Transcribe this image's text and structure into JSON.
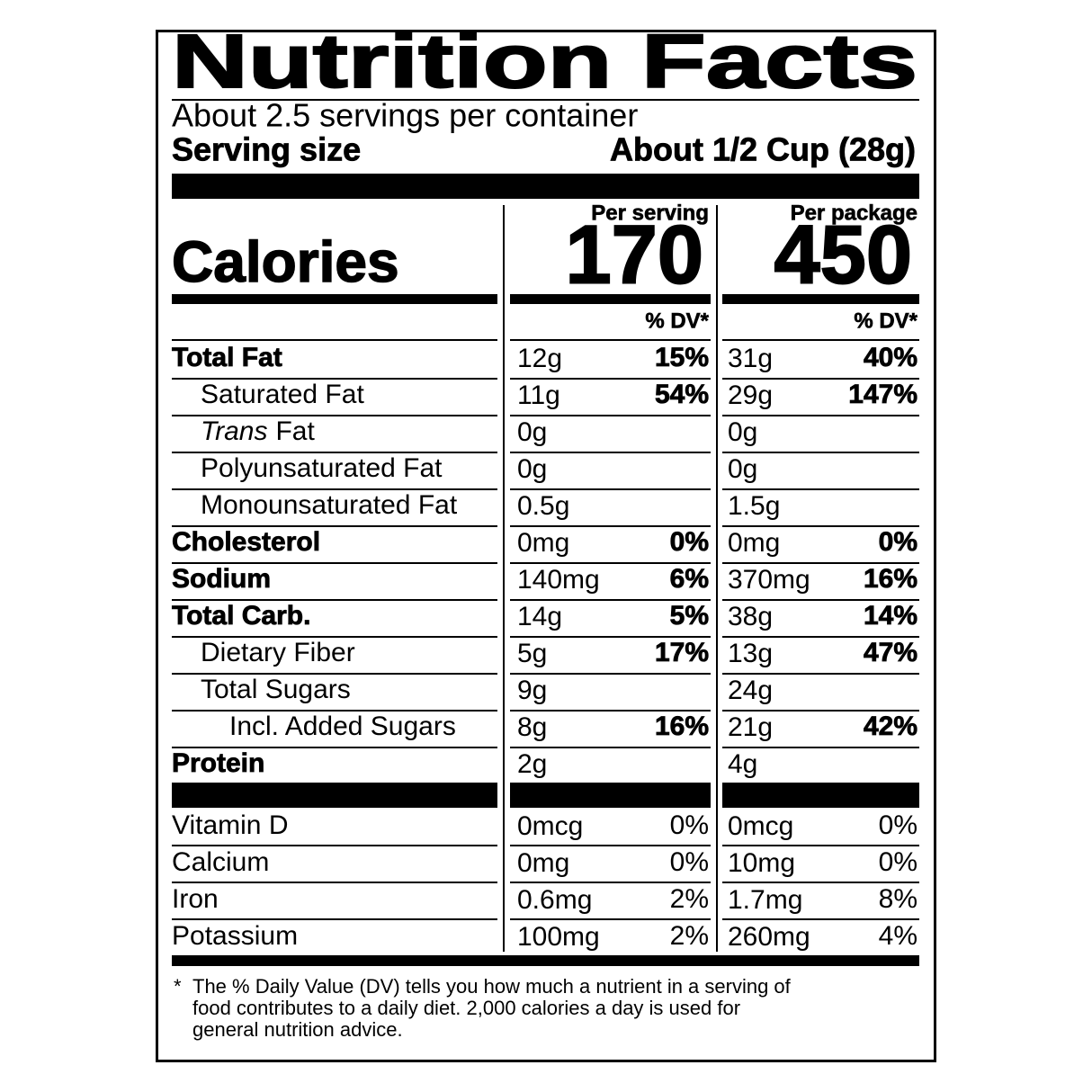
{
  "title": "Nutrition Facts",
  "servings": "About 2.5 servings per container",
  "serving_size_label": "Serving size",
  "serving_size": "About 1/2 Cup (28g)",
  "calories_label": "Calories",
  "columns": [
    {
      "header": "Per serving",
      "calories": 170,
      "dv_header": "% DV*"
    },
    {
      "header": "Per package",
      "calories": 450,
      "dv_header": "% DV*"
    }
  ],
  "nutrients": [
    {
      "name": "Total Fat",
      "bold": true,
      "indent": 0,
      "cells": [
        {
          "amount": "12g",
          "dv": "15%"
        },
        {
          "amount": "31g",
          "dv": "40%"
        }
      ]
    },
    {
      "name": "Saturated Fat",
      "bold": false,
      "indent": 1,
      "cells": [
        {
          "amount": "11g",
          "dv": "54%"
        },
        {
          "amount": "29g",
          "dv": "147%"
        }
      ]
    },
    {
      "name_italic": "Trans",
      "name": "Fat",
      "bold": false,
      "indent": 1,
      "cells": [
        {
          "amount": "0g"
        },
        {
          "amount": "0g"
        }
      ]
    },
    {
      "name": "Polyunsaturated Fat",
      "bold": false,
      "indent": 1,
      "cells": [
        {
          "amount": "0g"
        },
        {
          "amount": "0g"
        }
      ]
    },
    {
      "name": "Monounsaturated Fat",
      "bold": false,
      "indent": 1,
      "cells": [
        {
          "amount": "0.5g"
        },
        {
          "amount": "1.5g"
        }
      ]
    },
    {
      "name": "Cholesterol",
      "bold": true,
      "indent": 0,
      "cells": [
        {
          "amount": "0mg",
          "dv": "0%"
        },
        {
          "amount": "0mg",
          "dv": "0%"
        }
      ]
    },
    {
      "name": "Sodium",
      "bold": true,
      "indent": 0,
      "cells": [
        {
          "amount": "140mg",
          "dv": "6%"
        },
        {
          "amount": "370mg",
          "dv": "16%"
        }
      ]
    },
    {
      "name": "Total Carb.",
      "bold": true,
      "indent": 0,
      "cells": [
        {
          "amount": "14g",
          "dv": "5%"
        },
        {
          "amount": "38g",
          "dv": "14%"
        }
      ]
    },
    {
      "name": "Dietary Fiber",
      "bold": false,
      "indent": 1,
      "cells": [
        {
          "amount": "5g",
          "dv": "17%"
        },
        {
          "amount": "13g",
          "dv": "47%"
        }
      ]
    },
    {
      "name": "Total Sugars",
      "bold": false,
      "indent": 1,
      "cells": [
        {
          "amount": "9g"
        },
        {
          "amount": "24g"
        }
      ]
    },
    {
      "name": "Incl. Added Sugars",
      "bold": false,
      "indent": 2,
      "cells": [
        {
          "amount": "8g",
          "dv": "16%"
        },
        {
          "amount": "21g",
          "dv": "42%"
        }
      ]
    },
    {
      "name": "Protein",
      "bold": true,
      "indent": 0,
      "cells": [
        {
          "amount": "2g"
        },
        {
          "amount": "4g"
        }
      ]
    }
  ],
  "vitamins": [
    {
      "name": "Vitamin D",
      "cells": [
        {
          "amount": "0mcg",
          "dv": "0%"
        },
        {
          "amount": "0mcg",
          "dv": "0%"
        }
      ]
    },
    {
      "name": "Calcium",
      "cells": [
        {
          "amount": "0mg",
          "dv": "0%"
        },
        {
          "amount": "10mg",
          "dv": "0%"
        }
      ]
    },
    {
      "name": "Iron",
      "cells": [
        {
          "amount": "0.6mg",
          "dv": "2%"
        },
        {
          "amount": "1.7mg",
          "dv": "8%"
        }
      ]
    },
    {
      "name": "Potassium",
      "cells": [
        {
          "amount": "100mg",
          "dv": "2%"
        },
        {
          "amount": "260mg",
          "dv": "4%"
        }
      ]
    }
  ],
  "footnote": {
    "mark": "*",
    "lines": [
      "The % Daily Value (DV) tells you how much a nutrient in a serving of",
      "food contributes to a daily diet. 2,000 calories a day is used for",
      "general nutrition advice."
    ]
  }
}
